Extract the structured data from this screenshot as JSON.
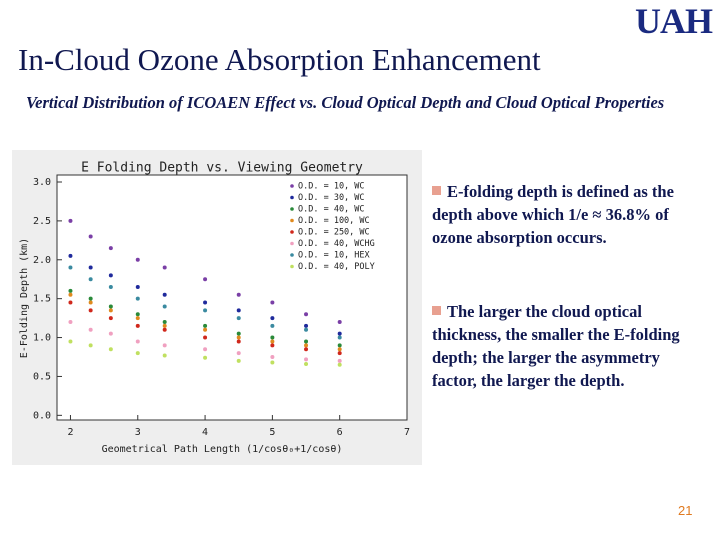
{
  "header": {
    "logo": "UAH",
    "title": "In-Cloud Ozone Absorption Enhancement"
  },
  "subtitle": "Vertical Distribution of ICOAEN Effect vs. Cloud Optical Depth and Cloud Optical Properties",
  "chart_data": {
    "type": "scatter",
    "title": "E Folding Depth vs. Viewing Geometry",
    "x_label": "Geometrical Path Length (1/cosθ₀+1/cosθ)",
    "y_label": "E-Folding Depth (km)",
    "xlim": [
      1.8,
      7.0
    ],
    "ylim": [
      -0.06,
      3.09
    ],
    "xticks": [
      2,
      3,
      4,
      5,
      6,
      7
    ],
    "yticks": [
      {
        "value": 0,
        "label": "0.0"
      },
      {
        "value": 0.5,
        "label": "0.5"
      },
      {
        "value": 1,
        "label": "1.0"
      },
      {
        "value": 1.5,
        "label": "1.5"
      },
      {
        "value": 2,
        "label": "2.0"
      },
      {
        "value": 2.5,
        "label": "2.5"
      },
      {
        "value": 3,
        "label": "3.0"
      }
    ],
    "x": [
      2.0,
      2.3,
      2.6,
      3.0,
      3.4,
      4.0,
      4.5,
      5.0,
      5.5,
      6.0
    ],
    "series": [
      {
        "name": "O.D. = 10, WC",
        "color": "#7a3fa6",
        "values": [
          2.5,
          2.3,
          2.15,
          2.0,
          1.9,
          1.75,
          1.55,
          1.45,
          1.3,
          1.2
        ]
      },
      {
        "name": "O.D. = 30, WC",
        "color": "#1f2a9c",
        "values": [
          2.05,
          1.9,
          1.8,
          1.65,
          1.55,
          1.45,
          1.35,
          1.25,
          1.15,
          1.05
        ]
      },
      {
        "name": "O.D. = 40, WC",
        "color": "#2a8a3a",
        "values": [
          1.6,
          1.5,
          1.4,
          1.3,
          1.2,
          1.15,
          1.05,
          1.0,
          0.95,
          0.9
        ]
      },
      {
        "name": "O.D. = 100, WC",
        "color": "#e08a1e",
        "values": [
          1.55,
          1.45,
          1.35,
          1.25,
          1.15,
          1.1,
          1.0,
          0.95,
          0.9,
          0.85
        ]
      },
      {
        "name": "O.D. = 250, WC",
        "color": "#d0281c",
        "values": [
          1.45,
          1.35,
          1.25,
          1.15,
          1.1,
          1.0,
          0.95,
          0.9,
          0.85,
          0.8
        ]
      },
      {
        "name": "O.D. = 40, WCHG",
        "color": "#f0a0c0",
        "values": [
          1.2,
          1.1,
          1.05,
          0.95,
          0.9,
          0.85,
          0.8,
          0.75,
          0.72,
          0.7
        ]
      },
      {
        "name": "O.D. = 10, HEX",
        "color": "#3a8aa0",
        "values": [
          1.9,
          1.75,
          1.65,
          1.5,
          1.4,
          1.35,
          1.25,
          1.15,
          1.1,
          1.0
        ]
      },
      {
        "name": "O.D. = 40, POLY",
        "color": "#c0e060",
        "values": [
          0.95,
          0.9,
          0.85,
          0.8,
          0.77,
          0.74,
          0.7,
          0.68,
          0.66,
          0.65
        ]
      }
    ]
  },
  "bullets": [
    "E-folding depth is defined as the depth above which 1/e ≈ 36.8% of ozone absorption occurs.",
    "The larger the cloud optical thickness, the smaller the E-folding depth; the larger the asymmetry factor, the larger the depth."
  ],
  "page_number": "21"
}
